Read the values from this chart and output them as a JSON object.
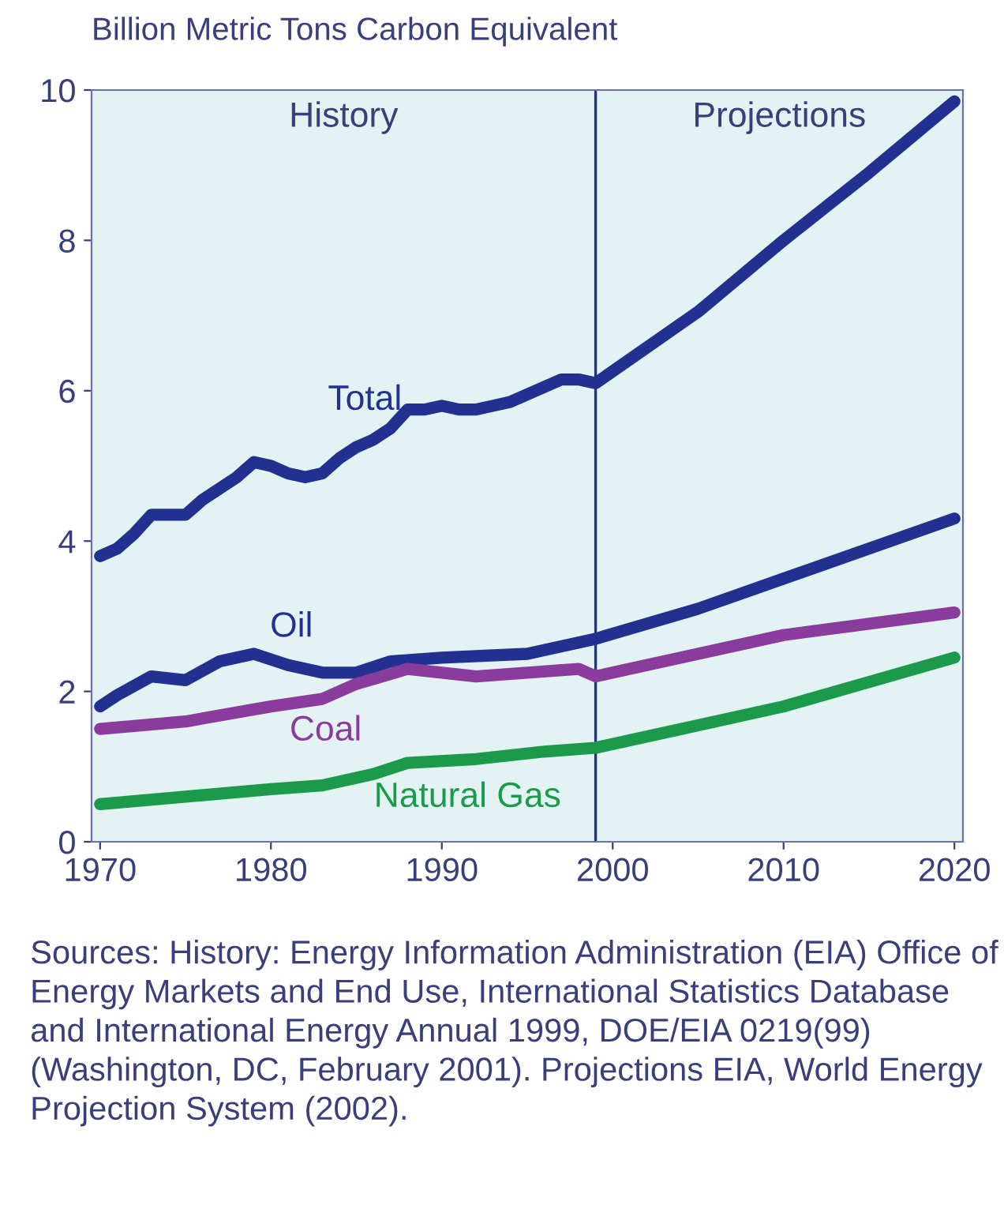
{
  "chart_data": {
    "type": "line",
    "ylabel": "Billion Metric Tons Carbon Equivalent",
    "xlim": [
      1969.5,
      2020.5
    ],
    "xticks": [
      1970,
      1980,
      1990,
      2000,
      2010,
      2020
    ],
    "ylim": [
      0,
      10
    ],
    "yticks": [
      0,
      2,
      4,
      6,
      8,
      10
    ],
    "grid": false,
    "legend": false,
    "marker": "none",
    "line_style": "solid",
    "series": [
      {
        "name": "Total",
        "color": "#22308f",
        "x": [
          1970,
          1971,
          1972,
          1973,
          1974,
          1975,
          1976,
          1977,
          1978,
          1979,
          1980,
          1981,
          1982,
          1983,
          1984,
          1985,
          1986,
          1987,
          1988,
          1989,
          1990,
          1991,
          1992,
          1993,
          1994,
          1995,
          1996,
          1997,
          1998,
          1999,
          2005,
          2010,
          2015,
          2020
        ],
        "values": [
          3.8,
          3.9,
          4.1,
          4.35,
          4.35,
          4.35,
          4.55,
          4.7,
          4.85,
          5.05,
          5.0,
          4.9,
          4.85,
          4.9,
          5.1,
          5.25,
          5.35,
          5.5,
          5.75,
          5.75,
          5.8,
          5.75,
          5.75,
          5.8,
          5.85,
          5.95,
          6.05,
          6.15,
          6.15,
          6.1,
          7.05,
          8.0,
          8.9,
          9.85
        ]
      },
      {
        "name": "Oil",
        "color": "#22308f",
        "x": [
          1970,
          1971,
          1973,
          1975,
          1977,
          1979,
          1981,
          1983,
          1985,
          1987,
          1990,
          1995,
          1999,
          2005,
          2010,
          2020
        ],
        "values": [
          1.8,
          1.95,
          2.2,
          2.15,
          2.4,
          2.5,
          2.35,
          2.25,
          2.25,
          2.4,
          2.45,
          2.5,
          2.7,
          3.1,
          3.5,
          4.3
        ]
      },
      {
        "name": "Coal",
        "color": "#8a3c9c",
        "x": [
          1970,
          1975,
          1980,
          1983,
          1985,
          1988,
          1990,
          1992,
          1995,
          1998,
          1999,
          2005,
          2010,
          2020
        ],
        "values": [
          1.5,
          1.6,
          1.8,
          1.9,
          2.1,
          2.3,
          2.25,
          2.2,
          2.25,
          2.3,
          2.2,
          2.5,
          2.75,
          3.05
        ]
      },
      {
        "name": "Natural Gas",
        "color": "#1c9a4c",
        "x": [
          1970,
          1975,
          1980,
          1983,
          1986,
          1988,
          1992,
          1996,
          1999,
          2005,
          2010,
          2020
        ],
        "values": [
          0.5,
          0.6,
          0.7,
          0.75,
          0.9,
          1.05,
          1.1,
          1.2,
          1.25,
          1.55,
          1.8,
          2.45
        ]
      }
    ],
    "ref_lines": [
      {
        "axis": "x",
        "value": 1999,
        "color": "#22308f"
      }
    ],
    "bands": [
      {
        "axis": "x",
        "from": 1969.5,
        "to": 1999,
        "label": "History",
        "color": "#e3f3f3"
      },
      {
        "axis": "x",
        "from": 1999,
        "to": 2020.5,
        "label": "Projections",
        "color": "#e3f3f3"
      }
    ],
    "annotations": [
      "Sources: History: Energy Information Administration (EIA) Office of Energy Markets and End Use, International Statistics Database and International Energy Annual 1999, DOE/EIA 0219(99) (Washington, DC, February 2001). Projections EIA, World Energy Projection System (2002)."
    ]
  }
}
